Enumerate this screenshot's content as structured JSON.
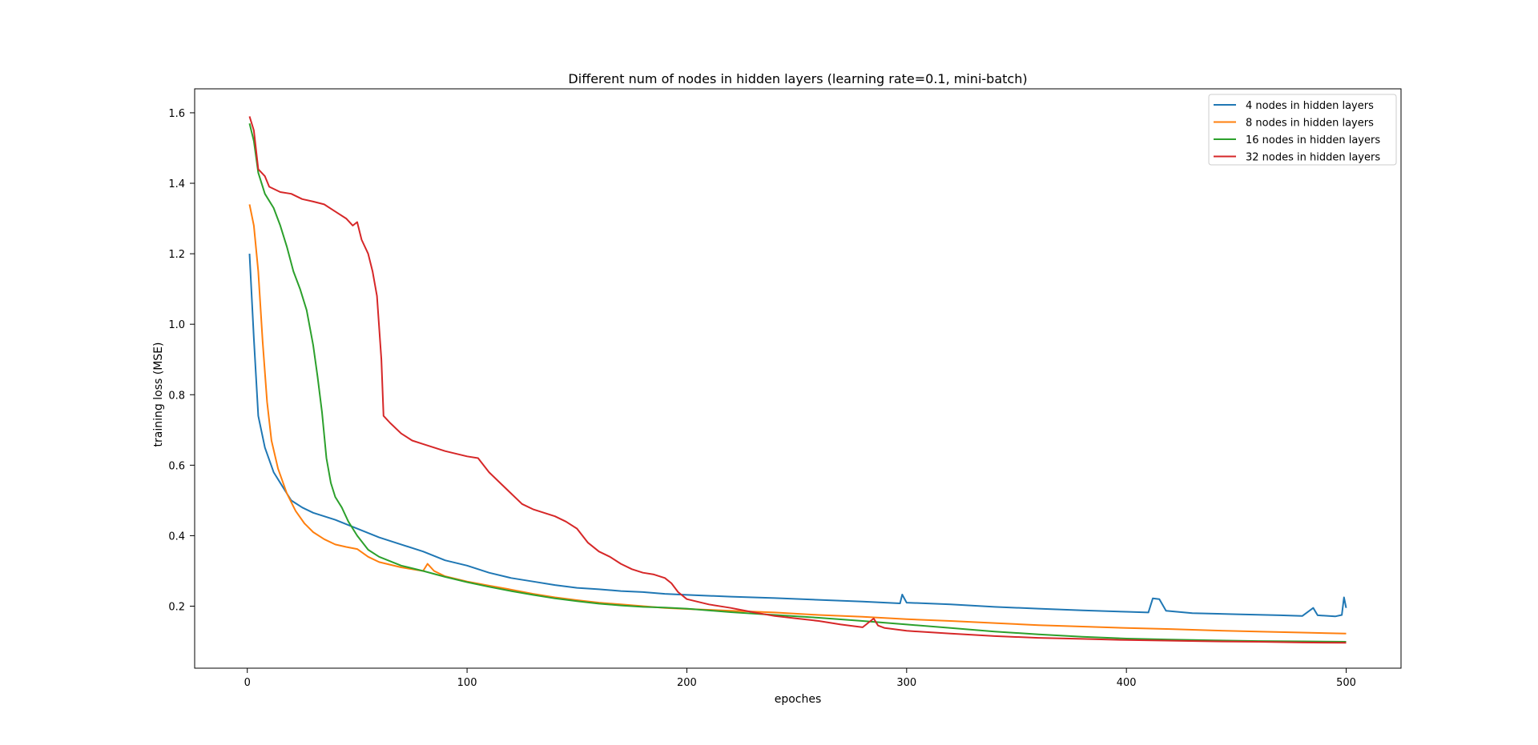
{
  "chart_data": {
    "type": "line",
    "title": "Different num of nodes in hidden layers (learning rate=0.1, mini-batch)",
    "xlabel": "epoches",
    "ylabel": "training loss (MSE)",
    "xlim": [
      -23.95,
      524.95
    ],
    "ylim": [
      0.024,
      1.668
    ],
    "xticks": [
      0,
      100,
      200,
      300,
      400,
      500
    ],
    "yticks": [
      0.2,
      0.4,
      0.6,
      0.8,
      1.0,
      1.2,
      1.4,
      1.6
    ],
    "xtick_labels": [
      "0",
      "100",
      "200",
      "300",
      "400",
      "500"
    ],
    "ytick_labels": [
      "0.2",
      "0.4",
      "0.6",
      "0.8",
      "1.0",
      "1.2",
      "1.4",
      "1.6"
    ],
    "grid": false,
    "legend_position": "top-right",
    "series": [
      {
        "name": "4 nodes in hidden layers",
        "color": "#1f77b4",
        "points": [
          [
            1,
            1.2
          ],
          [
            3,
            0.96
          ],
          [
            5,
            0.74
          ],
          [
            8,
            0.65
          ],
          [
            12,
            0.58
          ],
          [
            16,
            0.54
          ],
          [
            20,
            0.5
          ],
          [
            25,
            0.48
          ],
          [
            30,
            0.465
          ],
          [
            40,
            0.445
          ],
          [
            50,
            0.42
          ],
          [
            60,
            0.395
          ],
          [
            70,
            0.375
          ],
          [
            80,
            0.355
          ],
          [
            90,
            0.33
          ],
          [
            100,
            0.315
          ],
          [
            110,
            0.295
          ],
          [
            120,
            0.28
          ],
          [
            130,
            0.27
          ],
          [
            140,
            0.26
          ],
          [
            150,
            0.252
          ],
          [
            160,
            0.248
          ],
          [
            170,
            0.243
          ],
          [
            180,
            0.24
          ],
          [
            190,
            0.235
          ],
          [
            200,
            0.232
          ],
          [
            220,
            0.227
          ],
          [
            240,
            0.223
          ],
          [
            260,
            0.218
          ],
          [
            280,
            0.213
          ],
          [
            297,
            0.208
          ],
          [
            298,
            0.233
          ],
          [
            300,
            0.21
          ],
          [
            320,
            0.205
          ],
          [
            340,
            0.198
          ],
          [
            360,
            0.193
          ],
          [
            380,
            0.188
          ],
          [
            400,
            0.184
          ],
          [
            410,
            0.182
          ],
          [
            412,
            0.222
          ],
          [
            415,
            0.22
          ],
          [
            418,
            0.187
          ],
          [
            430,
            0.18
          ],
          [
            450,
            0.177
          ],
          [
            470,
            0.174
          ],
          [
            480,
            0.172
          ],
          [
            485,
            0.195
          ],
          [
            487,
            0.174
          ],
          [
            495,
            0.171
          ],
          [
            498,
            0.175
          ],
          [
            499,
            0.225
          ],
          [
            500,
            0.195
          ]
        ]
      },
      {
        "name": "8 nodes in hidden layers",
        "color": "#ff7f0e",
        "points": [
          [
            1,
            1.34
          ],
          [
            3,
            1.28
          ],
          [
            5,
            1.15
          ],
          [
            7,
            0.95
          ],
          [
            9,
            0.78
          ],
          [
            11,
            0.67
          ],
          [
            14,
            0.59
          ],
          [
            18,
            0.52
          ],
          [
            22,
            0.47
          ],
          [
            26,
            0.435
          ],
          [
            30,
            0.41
          ],
          [
            35,
            0.39
          ],
          [
            40,
            0.375
          ],
          [
            45,
            0.368
          ],
          [
            50,
            0.362
          ],
          [
            55,
            0.34
          ],
          [
            60,
            0.325
          ],
          [
            70,
            0.31
          ],
          [
            80,
            0.3
          ],
          [
            82,
            0.32
          ],
          [
            85,
            0.3
          ],
          [
            90,
            0.285
          ],
          [
            100,
            0.27
          ],
          [
            110,
            0.258
          ],
          [
            120,
            0.247
          ],
          [
            130,
            0.235
          ],
          [
            140,
            0.225
          ],
          [
            150,
            0.217
          ],
          [
            160,
            0.21
          ],
          [
            170,
            0.205
          ],
          [
            180,
            0.2
          ],
          [
            190,
            0.195
          ],
          [
            200,
            0.192
          ],
          [
            220,
            0.187
          ],
          [
            240,
            0.182
          ],
          [
            260,
            0.175
          ],
          [
            280,
            0.17
          ],
          [
            300,
            0.163
          ],
          [
            320,
            0.158
          ],
          [
            340,
            0.152
          ],
          [
            360,
            0.146
          ],
          [
            380,
            0.142
          ],
          [
            400,
            0.138
          ],
          [
            420,
            0.135
          ],
          [
            440,
            0.131
          ],
          [
            460,
            0.128
          ],
          [
            480,
            0.125
          ],
          [
            500,
            0.122
          ]
        ]
      },
      {
        "name": "16 nodes in hidden layers",
        "color": "#2ca02c",
        "points": [
          [
            1,
            1.57
          ],
          [
            3,
            1.52
          ],
          [
            5,
            1.43
          ],
          [
            8,
            1.37
          ],
          [
            12,
            1.33
          ],
          [
            15,
            1.28
          ],
          [
            18,
            1.22
          ],
          [
            21,
            1.15
          ],
          [
            24,
            1.1
          ],
          [
            27,
            1.04
          ],
          [
            30,
            0.94
          ],
          [
            32,
            0.85
          ],
          [
            34,
            0.75
          ],
          [
            36,
            0.62
          ],
          [
            38,
            0.55
          ],
          [
            40,
            0.51
          ],
          [
            43,
            0.48
          ],
          [
            46,
            0.44
          ],
          [
            50,
            0.4
          ],
          [
            55,
            0.36
          ],
          [
            60,
            0.34
          ],
          [
            70,
            0.315
          ],
          [
            80,
            0.3
          ],
          [
            90,
            0.283
          ],
          [
            100,
            0.268
          ],
          [
            110,
            0.255
          ],
          [
            120,
            0.243
          ],
          [
            130,
            0.232
          ],
          [
            140,
            0.222
          ],
          [
            150,
            0.214
          ],
          [
            160,
            0.207
          ],
          [
            170,
            0.202
          ],
          [
            180,
            0.198
          ],
          [
            190,
            0.196
          ],
          [
            200,
            0.193
          ],
          [
            220,
            0.183
          ],
          [
            240,
            0.175
          ],
          [
            260,
            0.167
          ],
          [
            280,
            0.158
          ],
          [
            300,
            0.148
          ],
          [
            320,
            0.138
          ],
          [
            340,
            0.128
          ],
          [
            360,
            0.12
          ],
          [
            380,
            0.113
          ],
          [
            400,
            0.108
          ],
          [
            420,
            0.105
          ],
          [
            440,
            0.103
          ],
          [
            460,
            0.101
          ],
          [
            480,
            0.1
          ],
          [
            500,
            0.099
          ]
        ]
      },
      {
        "name": "32 nodes in hidden layers",
        "color": "#d62728",
        "points": [
          [
            1,
            1.59
          ],
          [
            3,
            1.55
          ],
          [
            5,
            1.44
          ],
          [
            8,
            1.42
          ],
          [
            10,
            1.39
          ],
          [
            15,
            1.375
          ],
          [
            20,
            1.37
          ],
          [
            25,
            1.355
          ],
          [
            30,
            1.348
          ],
          [
            35,
            1.34
          ],
          [
            40,
            1.32
          ],
          [
            45,
            1.3
          ],
          [
            48,
            1.28
          ],
          [
            50,
            1.29
          ],
          [
            52,
            1.24
          ],
          [
            55,
            1.2
          ],
          [
            57,
            1.15
          ],
          [
            59,
            1.08
          ],
          [
            61,
            0.9
          ],
          [
            62,
            0.74
          ],
          [
            65,
            0.72
          ],
          [
            70,
            0.69
          ],
          [
            75,
            0.67
          ],
          [
            80,
            0.66
          ],
          [
            90,
            0.64
          ],
          [
            100,
            0.625
          ],
          [
            105,
            0.62
          ],
          [
            110,
            0.58
          ],
          [
            115,
            0.55
          ],
          [
            120,
            0.52
          ],
          [
            125,
            0.49
          ],
          [
            130,
            0.475
          ],
          [
            140,
            0.455
          ],
          [
            145,
            0.44
          ],
          [
            150,
            0.42
          ],
          [
            155,
            0.38
          ],
          [
            160,
            0.355
          ],
          [
            165,
            0.34
          ],
          [
            170,
            0.32
          ],
          [
            175,
            0.305
          ],
          [
            180,
            0.295
          ],
          [
            185,
            0.29
          ],
          [
            190,
            0.28
          ],
          [
            193,
            0.265
          ],
          [
            196,
            0.24
          ],
          [
            200,
            0.22
          ],
          [
            210,
            0.205
          ],
          [
            220,
            0.195
          ],
          [
            230,
            0.183
          ],
          [
            240,
            0.172
          ],
          [
            250,
            0.165
          ],
          [
            260,
            0.158
          ],
          [
            270,
            0.148
          ],
          [
            280,
            0.14
          ],
          [
            285,
            0.165
          ],
          [
            287,
            0.145
          ],
          [
            290,
            0.138
          ],
          [
            300,
            0.13
          ],
          [
            320,
            0.122
          ],
          [
            340,
            0.115
          ],
          [
            360,
            0.11
          ],
          [
            380,
            0.107
          ],
          [
            400,
            0.104
          ],
          [
            420,
            0.102
          ],
          [
            440,
            0.1
          ],
          [
            460,
            0.099
          ],
          [
            480,
            0.097
          ],
          [
            500,
            0.096
          ]
        ]
      }
    ]
  }
}
